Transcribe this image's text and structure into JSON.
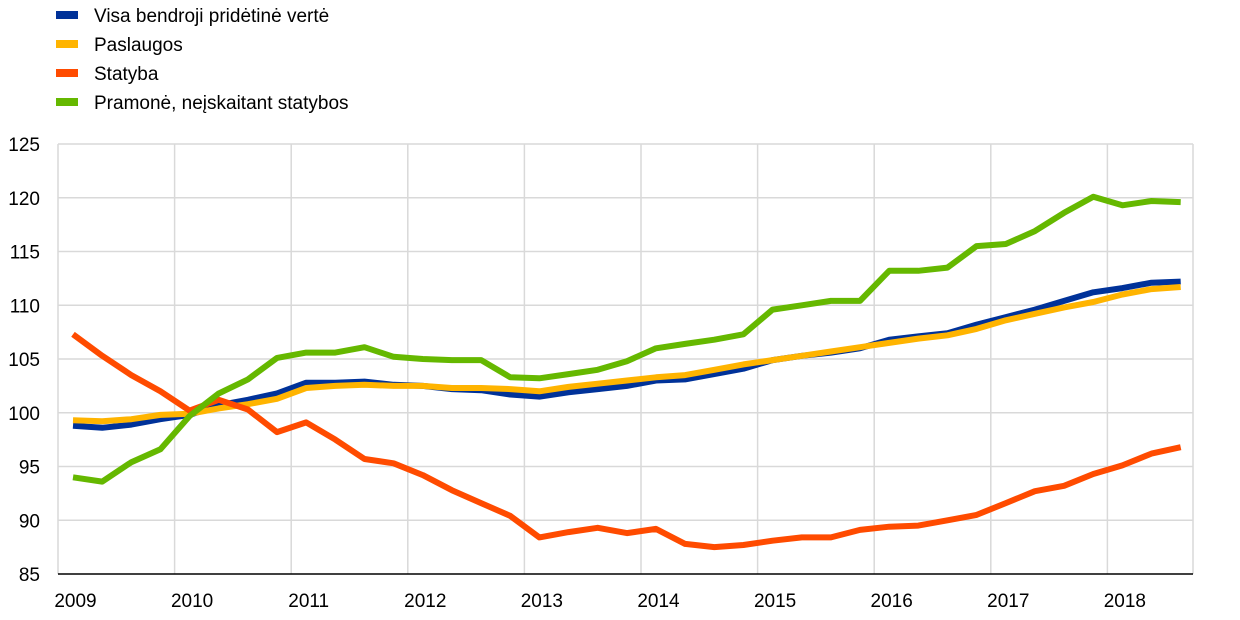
{
  "chart_data": {
    "type": "line",
    "title": "",
    "xlabel": "",
    "ylabel": "",
    "ylim": [
      85,
      125
    ],
    "yticks": [
      85,
      90,
      95,
      100,
      105,
      110,
      115,
      120,
      125
    ],
    "xticks": [
      "2009",
      "2010",
      "2011",
      "2012",
      "2013",
      "2014",
      "2015",
      "2016",
      "2017",
      "2018"
    ],
    "x": [
      "2009 Q1",
      "2009 Q2",
      "2009 Q3",
      "2009 Q4",
      "2010 Q1",
      "2010 Q2",
      "2010 Q3",
      "2010 Q4",
      "2011 Q1",
      "2011 Q2",
      "2011 Q3",
      "2011 Q4",
      "2012 Q1",
      "2012 Q2",
      "2012 Q3",
      "2012 Q4",
      "2013 Q1",
      "2013 Q2",
      "2013 Q3",
      "2013 Q4",
      "2014 Q1",
      "2014 Q2",
      "2014 Q3",
      "2014 Q4",
      "2015 Q1",
      "2015 Q2",
      "2015 Q3",
      "2015 Q4",
      "2016 Q1",
      "2016 Q2",
      "2016 Q3",
      "2016 Q4",
      "2017 Q1",
      "2017 Q2",
      "2017 Q3",
      "2017 Q4",
      "2018 Q1",
      "2018 Q2",
      "2018 Q3"
    ],
    "grid": "horizontal and vertical",
    "legend_position": "top-left",
    "series": [
      {
        "name": "Visa bendroji pridėtinė vertė",
        "color": "#003299",
        "values": [
          98.8,
          98.6,
          98.9,
          99.4,
          99.8,
          100.7,
          101.2,
          101.8,
          102.8,
          102.8,
          102.9,
          102.6,
          102.5,
          102.2,
          102.1,
          101.7,
          101.5,
          101.9,
          102.2,
          102.5,
          103.0,
          103.1,
          103.6,
          104.1,
          104.9,
          105.3,
          105.6,
          106.0,
          106.8,
          107.1,
          107.4,
          108.2,
          108.9,
          109.6,
          110.4,
          111.2,
          111.6,
          112.1,
          112.2
        ]
      },
      {
        "name": "Paslaugos",
        "color": "#FFB400",
        "values": [
          99.3,
          99.2,
          99.4,
          99.8,
          99.9,
          100.4,
          100.8,
          101.3,
          102.3,
          102.5,
          102.6,
          102.5,
          102.5,
          102.3,
          102.3,
          102.2,
          102.0,
          102.4,
          102.7,
          103.0,
          103.3,
          103.5,
          104.0,
          104.5,
          104.9,
          105.3,
          105.7,
          106.1,
          106.5,
          106.9,
          107.2,
          107.8,
          108.6,
          109.2,
          109.8,
          110.3,
          111.0,
          111.5,
          111.7
        ]
      },
      {
        "name": "Statyba",
        "color": "#FF4B00",
        "values": [
          107.3,
          105.3,
          103.5,
          102.0,
          100.2,
          101.2,
          100.3,
          98.2,
          99.1,
          97.5,
          95.7,
          95.3,
          94.2,
          92.8,
          91.6,
          90.4,
          88.4,
          88.9,
          89.3,
          88.8,
          89.2,
          87.8,
          87.5,
          87.7,
          88.1,
          88.4,
          88.4,
          89.1,
          89.4,
          89.5,
          90.0,
          90.5,
          91.6,
          92.7,
          93.2,
          94.3,
          95.1,
          96.2,
          96.8
        ]
      },
      {
        "name": "Pramonė, neįskaitant statybos",
        "color": "#65B800",
        "values": [
          94.0,
          93.6,
          95.4,
          96.6,
          99.7,
          101.8,
          103.1,
          105.1,
          105.6,
          105.6,
          106.1,
          105.2,
          105.0,
          104.9,
          104.9,
          103.3,
          103.2,
          103.6,
          104.0,
          104.8,
          106.0,
          106.4,
          106.8,
          107.3,
          109.6,
          110.0,
          110.4,
          110.4,
          113.2,
          113.2,
          113.5,
          115.5,
          115.7,
          116.9,
          118.6,
          120.1,
          119.3,
          119.7,
          119.6
        ]
      }
    ]
  }
}
